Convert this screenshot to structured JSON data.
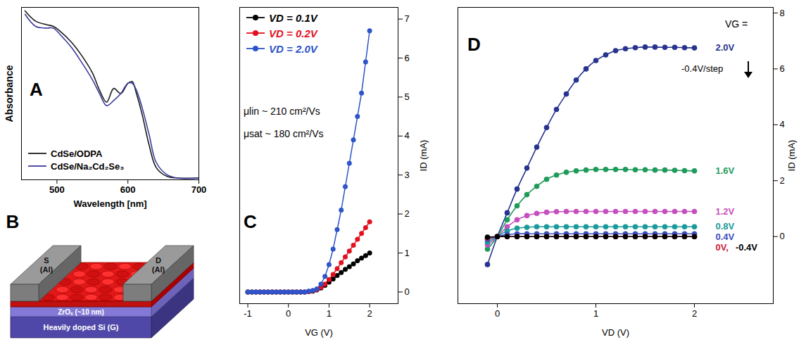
{
  "chart_data": [
    {
      "panel_label": "A",
      "type": "line",
      "x_label": "Wavelength [nm]",
      "y_label": "Absorbance",
      "x": [
        455,
        470,
        485,
        495,
        505,
        520,
        535,
        550,
        560,
        570,
        580,
        590,
        600,
        606,
        612,
        620,
        630,
        640,
        655,
        670,
        700
      ],
      "series": [
        {
          "name": "CdSe/ODPA",
          "color": "#1a1a1a",
          "values": [
            0.98,
            0.92,
            0.9,
            0.89,
            0.86,
            0.8,
            0.72,
            0.62,
            0.52,
            0.45,
            0.53,
            0.5,
            0.56,
            0.57,
            0.5,
            0.38,
            0.2,
            0.07,
            0.02,
            0.01,
            0.01
          ]
        },
        {
          "name": "CdSe/Na₂Cd₂Se₃",
          "color": "#3b3b9e",
          "values": [
            0.96,
            0.89,
            0.88,
            0.88,
            0.84,
            0.77,
            0.68,
            0.58,
            0.5,
            0.43,
            0.46,
            0.5,
            0.56,
            0.56,
            0.52,
            0.42,
            0.26,
            0.1,
            0.03,
            0.01,
            0.01
          ]
        }
      ],
      "xlim": [
        450,
        700
      ],
      "xticks": [
        500,
        600,
        700
      ],
      "ylim": [
        0,
        1
      ],
      "yticks": [],
      "tick_labels": "x",
      "legend": "bottom-left"
    },
    {
      "panel_label": "B",
      "type": "diagram",
      "labels": {
        "source": "S (Al)",
        "drain": "D (Al)",
        "dielectric": "ZrOₓ (~10 nm)",
        "gate": "Heavily doped Si (G)"
      }
    },
    {
      "panel_label": "C",
      "type": "line",
      "x_label": "VG (V)",
      "y_label": "ID (mA)",
      "x": [
        -1,
        -0.9,
        -0.8,
        -0.7,
        -0.6,
        -0.5,
        -0.4,
        -0.3,
        -0.2,
        -0.1,
        0,
        0.1,
        0.2,
        0.3,
        0.4,
        0.5,
        0.6,
        0.7,
        0.8,
        0.9,
        1,
        1.1,
        1.2,
        1.3,
        1.4,
        1.5,
        1.6,
        1.7,
        1.8,
        1.9,
        2
      ],
      "series": [
        {
          "name": "VD = 0.1V",
          "color": "#000000",
          "values": [
            0,
            0,
            0,
            0,
            0,
            0,
            0,
            0,
            0,
            0,
            0,
            0,
            0,
            0,
            0,
            0.01,
            0.02,
            0.05,
            0.1,
            0.17,
            0.25,
            0.33,
            0.42,
            0.5,
            0.58,
            0.65,
            0.72,
            0.8,
            0.87,
            0.93,
            1.0
          ]
        },
        {
          "name": "VD = 0.2V",
          "color": "#e3101e",
          "values": [
            0,
            0,
            0,
            0,
            0,
            0,
            0,
            0,
            0,
            0,
            0,
            0,
            0,
            0,
            0,
            0.01,
            0.03,
            0.06,
            0.12,
            0.2,
            0.32,
            0.45,
            0.6,
            0.75,
            0.9,
            1.05,
            1.2,
            1.35,
            1.5,
            1.65,
            1.8
          ]
        },
        {
          "name": "VD = 2.0V",
          "color": "#2d54c9",
          "values": [
            0,
            0,
            0,
            0,
            0,
            0,
            0,
            0,
            0,
            0,
            0,
            0,
            0,
            0,
            0,
            0.02,
            0.04,
            0.08,
            0.2,
            0.4,
            0.7,
            1.1,
            1.6,
            2.1,
            2.7,
            3.3,
            3.9,
            4.5,
            5.1,
            5.9,
            6.7
          ]
        }
      ],
      "annotations": [
        "μlin ~ 210 cm²/Vs",
        "μsat ~ 180 cm²/Vs"
      ],
      "xlim": [
        -1.2,
        2.7
      ],
      "xticks": [
        -1,
        0,
        1,
        2
      ],
      "ylim": [
        -0.3,
        7.3
      ],
      "yticks": [
        0,
        1,
        2,
        3,
        4,
        5,
        6,
        7
      ],
      "marker": "circle",
      "legend": "top-left"
    },
    {
      "panel_label": "D",
      "type": "line",
      "x_label": "VD (V)",
      "y_label": "ID (mA)",
      "legend_title": "VG =",
      "x": [
        -0.1,
        0,
        0.1,
        0.2,
        0.3,
        0.4,
        0.5,
        0.6,
        0.7,
        0.8,
        0.9,
        1.0,
        1.1,
        1.2,
        1.3,
        1.4,
        1.5,
        1.6,
        1.7,
        1.8,
        1.9,
        2.0
      ],
      "series": [
        {
          "name": "2.0V",
          "color": "#27338f",
          "values": [
            -1.0,
            0,
            0.85,
            1.7,
            2.45,
            3.2,
            3.9,
            4.55,
            5.1,
            5.6,
            6.0,
            6.3,
            6.5,
            6.65,
            6.72,
            6.76,
            6.78,
            6.78,
            6.77,
            6.77,
            6.76,
            6.75
          ]
        },
        {
          "name": "1.6V",
          "color": "#1e9a5a",
          "values": [
            -0.45,
            0,
            0.6,
            1.1,
            1.5,
            1.8,
            2.05,
            2.2,
            2.3,
            2.35,
            2.38,
            2.4,
            2.4,
            2.4,
            2.4,
            2.39,
            2.39,
            2.38,
            2.38,
            2.37,
            2.36,
            2.35
          ]
        },
        {
          "name": "1.2V",
          "color": "#c64fbf",
          "values": [
            -0.3,
            0,
            0.35,
            0.6,
            0.75,
            0.83,
            0.87,
            0.89,
            0.9,
            0.9,
            0.9,
            0.9,
            0.9,
            0.9,
            0.9,
            0.9,
            0.9,
            0.9,
            0.9,
            0.9,
            0.9,
            0.9
          ]
        },
        {
          "name": "0.8V",
          "color": "#1a9a9a",
          "values": [
            -0.2,
            0,
            0.2,
            0.3,
            0.33,
            0.35,
            0.35,
            0.35,
            0.35,
            0.35,
            0.35,
            0.35,
            0.35,
            0.35,
            0.35,
            0.35,
            0.35,
            0.35,
            0.35,
            0.35,
            0.35,
            0.35
          ]
        },
        {
          "name": "0.4V",
          "color": "#3a4fc0",
          "values": [
            -0.1,
            0,
            0.07,
            0.1,
            0.1,
            0.1,
            0.1,
            0.1,
            0.1,
            0.1,
            0.1,
            0.1,
            0.1,
            0.1,
            0.1,
            0.1,
            0.1,
            0.1,
            0.1,
            0.1,
            0.1,
            0.1
          ]
        },
        {
          "name": "0V",
          "label": "0V,",
          "color": "#d0203a",
          "values": [
            -0.05,
            0,
            0,
            0,
            0,
            0,
            0,
            0,
            0,
            0,
            0,
            0,
            0,
            0,
            0,
            0,
            0,
            0,
            0,
            0,
            0,
            0
          ]
        },
        {
          "name": "-0.4V",
          "color": "#000000",
          "values": [
            -0.02,
            0,
            0,
            0,
            0,
            0,
            0,
            0,
            0,
            0,
            0,
            0,
            0,
            0,
            0,
            0,
            0,
            0,
            0,
            0,
            0,
            0
          ]
        }
      ],
      "annotations": [
        "-0.4V/step"
      ],
      "xlim": [
        -0.4,
        2.8
      ],
      "xticks": [
        0,
        1,
        2
      ],
      "ylim": [
        -2.4,
        8.2
      ],
      "yticks": [
        0,
        2,
        4,
        6,
        8
      ],
      "marker": "circle"
    }
  ]
}
